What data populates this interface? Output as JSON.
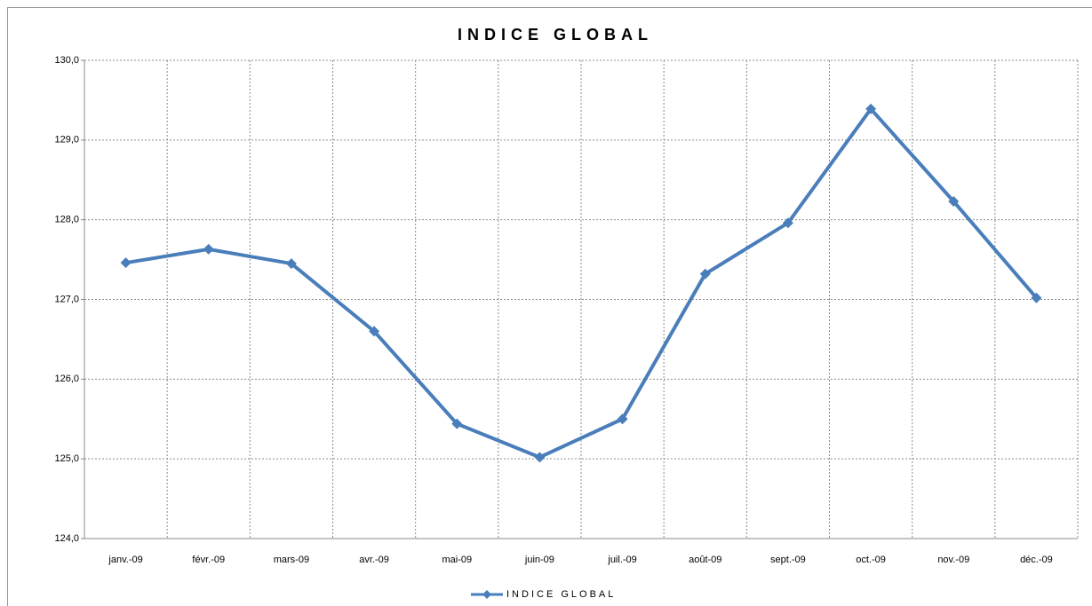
{
  "chart_data": {
    "type": "line",
    "title": "INDICE GLOBAL",
    "categories": [
      "janv.-09",
      "févr.-09",
      "mars-09",
      "avr.-09",
      "mai-09",
      "juin-09",
      "juil.-09",
      "août-09",
      "sept.-09",
      "oct.-09",
      "nov.-09",
      "déc.-09"
    ],
    "series": [
      {
        "name": "INDICE GLOBAL",
        "color": "#4a7ebb",
        "values": [
          127.46,
          127.63,
          127.45,
          126.6,
          125.44,
          125.02,
          125.5,
          127.32,
          127.96,
          129.39,
          128.23,
          127.02
        ]
      }
    ],
    "ylim": [
      124,
      130
    ],
    "yticks": [
      {
        "value": 124,
        "label": "124,0"
      },
      {
        "value": 125,
        "label": "125,0"
      },
      {
        "value": 126,
        "label": "126,0"
      },
      {
        "value": 127,
        "label": "127,0"
      },
      {
        "value": 128,
        "label": "128,0"
      },
      {
        "value": 129,
        "label": "129,0"
      },
      {
        "value": 130,
        "label": "130,0"
      }
    ],
    "grid": true,
    "legend": "bottom"
  }
}
